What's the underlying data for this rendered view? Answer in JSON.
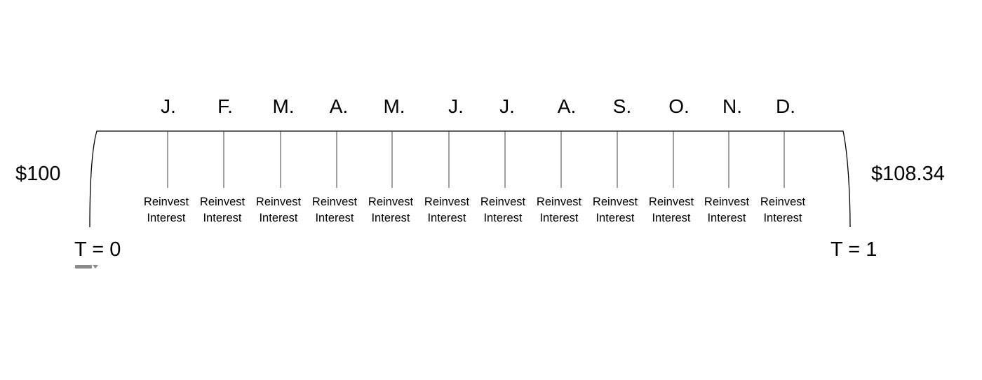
{
  "diagram": {
    "start_amount": "$100",
    "end_amount": "$108.34",
    "start_time": "T = 0",
    "end_time": "T = 1",
    "months": [
      "J.",
      "F.",
      "M.",
      "A.",
      "M.",
      "J.",
      "J.",
      "A.",
      "S.",
      "O.",
      "N.",
      "D."
    ],
    "reinvest_notes": [
      {
        "line1": "Reinvest",
        "line2": "Interest"
      },
      {
        "line1": "Reinvest",
        "line2": "Interest"
      },
      {
        "line1": "Reinvest",
        "line2": "Interest"
      },
      {
        "line1": "Reinvest",
        "line2": "Interest"
      },
      {
        "line1": "Reinvest",
        "line2": "Interest"
      },
      {
        "line1": "Reinvest",
        "line2": "Interest"
      },
      {
        "line1": "Reinvest",
        "line2": "Interest"
      },
      {
        "line1": "Reinvest",
        "line2": "Interest"
      },
      {
        "line1": "Reinvest",
        "line2": "Interest"
      },
      {
        "line1": "Reinvest",
        "line2": "Interest"
      },
      {
        "line1": "Reinvest",
        "line2": "Interest"
      },
      {
        "line1": "Reinvest",
        "line2": "Interest"
      }
    ],
    "line_color": "#000000",
    "tick_color": "#404040"
  }
}
